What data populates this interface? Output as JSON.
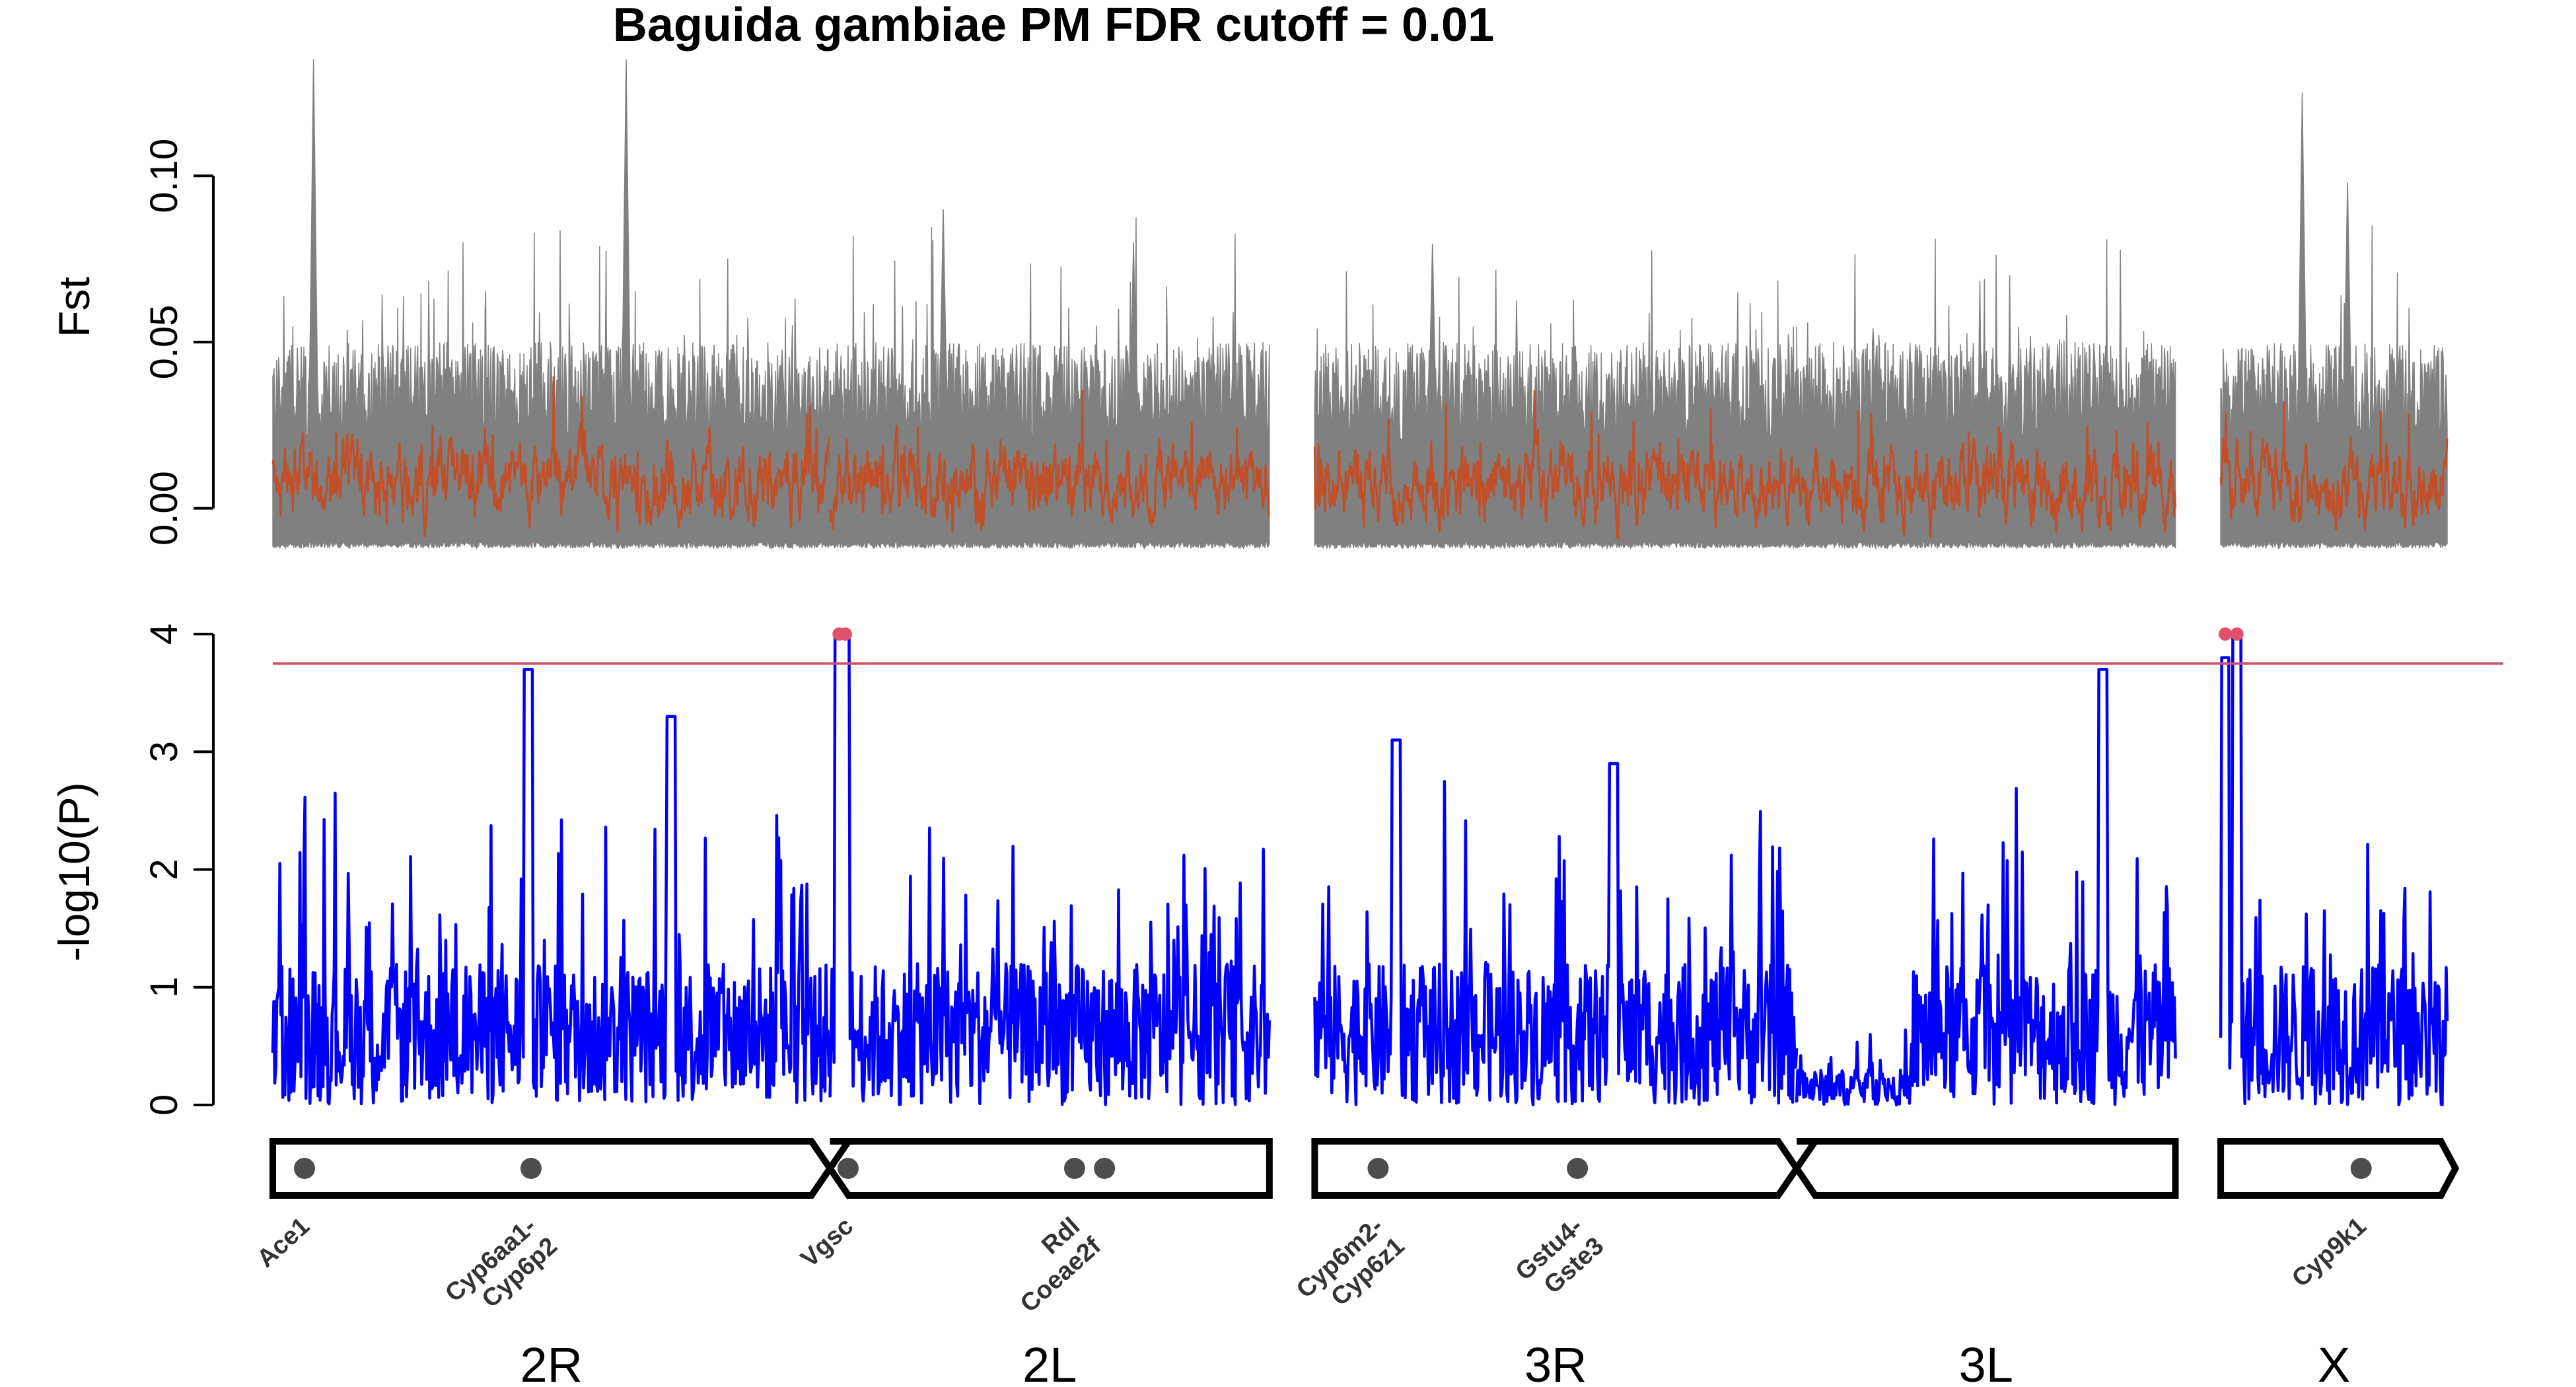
{
  "title": "Baguida gambiae PM FDR cutoff = 0.01",
  "colors": {
    "fst_background": "#808080",
    "fst_highlight": "#c0502a",
    "pvalue_line": "#0000ff",
    "cutoff_line": "#d0506a",
    "significant_point": "#e0506a",
    "gene_marker": "#4d4d4d",
    "chromosome_outline": "#000000"
  },
  "chart_data": [
    {
      "type": "line",
      "panel": "Fst",
      "ylabel": "Fst",
      "yticks": [
        "0.00",
        "0.05",
        "0.10"
      ],
      "ylim": [
        -0.012,
        0.135
      ],
      "series": [
        {
          "name": "",
          "role": "background",
          "color": "#808080"
        },
        {
          "name": "",
          "role": "highlight",
          "color": "#c0502a"
        }
      ]
    },
    {
      "type": "line",
      "panel": "-log10(P)",
      "ylabel": "-log10(P)",
      "yticks": [
        "0",
        "1",
        "2",
        "3",
        "4"
      ],
      "ylim": [
        0,
        4
      ],
      "cutoff": 3.75,
      "significant_windows": [
        {
          "chromosome": "2L",
          "value": 4
        },
        {
          "chromosome": "X",
          "value": 4
        }
      ]
    }
  ],
  "chromosomes": [
    {
      "name": "2R",
      "start": 0.0,
      "end": 61.5
    },
    {
      "name": "2L",
      "start": 61.5,
      "end": 110.0
    },
    {
      "name": "3R",
      "start": 115.0,
      "end": 168.2
    },
    {
      "name": "3L",
      "start": 168.2,
      "end": 210.0
    },
    {
      "name": "X",
      "start": 215.0,
      "end": 240.0
    }
  ],
  "genes": [
    {
      "label": [
        "Ace1"
      ],
      "pos": 3.5
    },
    {
      "label": [
        "Cyp6aa1-",
        "Cyp6p2"
      ],
      "pos": 28.5
    },
    {
      "label": [
        "Vgsc"
      ],
      "pos": 63.5
    },
    {
      "label": [
        "Rdl",
        "Coeae2f"
      ],
      "pos": 88.5
    },
    {
      "label": [],
      "pos": 91.8
    },
    {
      "label": [
        "Cyp6m2-",
        "Cyp6z1"
      ],
      "pos": 122.0
    },
    {
      "label": [
        "Gstu4-",
        "Gste3"
      ],
      "pos": 144.0
    },
    {
      "label": [
        "Cyp9k1"
      ],
      "pos": 230.5
    }
  ]
}
